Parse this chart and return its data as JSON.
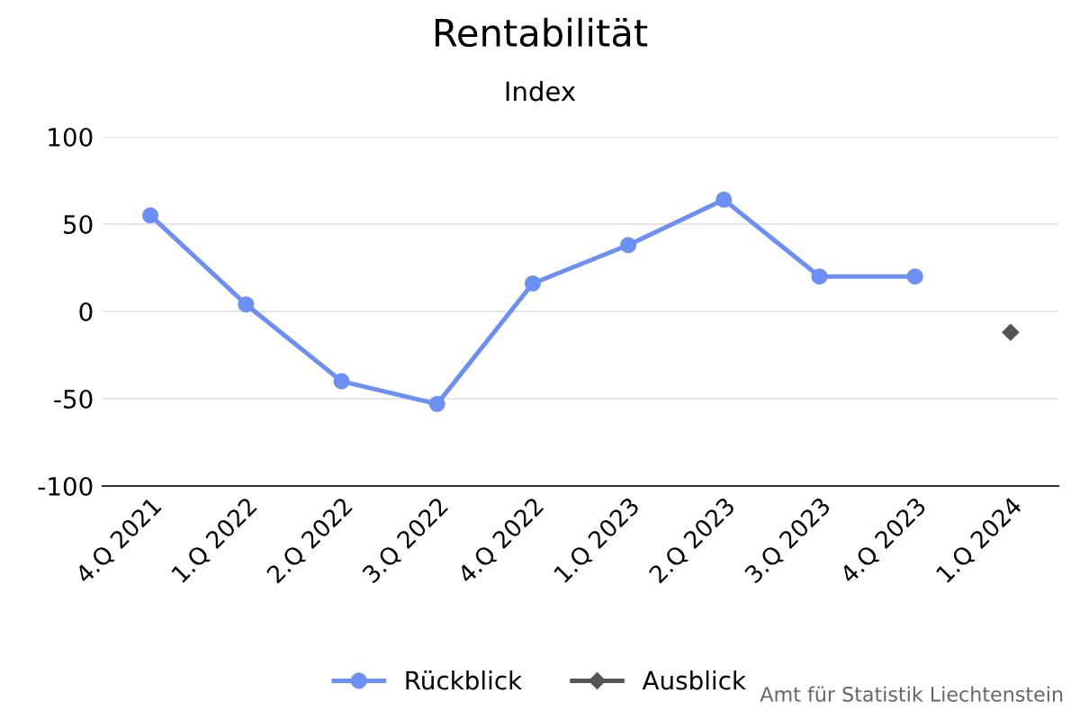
{
  "chart_data": {
    "type": "line",
    "title": "Rentabilität",
    "subtitle": "Index",
    "categories": [
      "4.Q 2021",
      "1.Q 2022",
      "2.Q 2022",
      "3.Q 2022",
      "4.Q 2022",
      "1.Q 2023",
      "2.Q 2023",
      "3.Q 2023",
      "4.Q 2023",
      "1.Q 2024"
    ],
    "series": [
      {
        "name": "Rückblick",
        "color": "#6b8ff5",
        "marker": "circle",
        "values": [
          55,
          4,
          -40,
          -53,
          16,
          38,
          64,
          20,
          20,
          null
        ]
      },
      {
        "name": "Ausblick",
        "color": "#555555",
        "marker": "diamond",
        "values": [
          null,
          null,
          null,
          null,
          null,
          null,
          null,
          null,
          null,
          -12
        ]
      }
    ],
    "ylim": [
      -100,
      100
    ],
    "yticks": [
      -100,
      -50,
      0,
      50,
      100
    ],
    "grid": "y",
    "legend": "bottom",
    "annotations": [
      "Amt für Statistik Liechtenstein"
    ]
  }
}
